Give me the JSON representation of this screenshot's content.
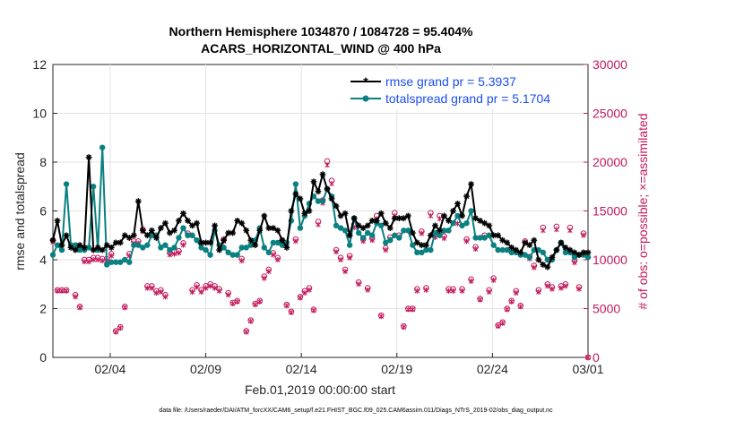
{
  "chart_data": {
    "type": "line",
    "title_line1": "Northern Hemisphere 1034870 / 1084728 = 95.404%",
    "title_line2": "ACARS_HORIZONTAL_WIND @ 400 hPa",
    "xlabel": "Feb.01,2019 00:00:00 start",
    "ylabel_left": "rmse and totalspread",
    "ylabel_right": "# of obs: o=possible; ×=assimilated",
    "xlim": [
      0,
      28
    ],
    "ylim_left": [
      0,
      12
    ],
    "ylim_right": [
      0,
      30000
    ],
    "x_ticks": [
      {
        "x": 3,
        "label": "02/04"
      },
      {
        "x": 8,
        "label": "02/09"
      },
      {
        "x": 13,
        "label": "02/14"
      },
      {
        "x": 18,
        "label": "02/19"
      },
      {
        "x": 23,
        "label": "02/24"
      },
      {
        "x": 28,
        "label": "03/01"
      }
    ],
    "y_ticks_left": [
      "0",
      "2",
      "4",
      "6",
      "8",
      "10",
      "12"
    ],
    "y_ticks_right": [
      "0",
      "5000",
      "10000",
      "15000",
      "20000",
      "25000",
      "30000"
    ],
    "series": [
      {
        "name": "rmse",
        "legend": "rmse grand pr = 5.3937",
        "color": "#000000",
        "values": [
          4.8,
          5.6,
          4.6,
          5.0,
          4.5,
          4.4,
          4.6,
          4.5,
          8.2,
          4.4,
          4.5,
          4.4,
          4.6,
          4.5,
          4.7,
          4.7,
          5.0,
          4.9,
          5.0,
          6.4,
          5.2,
          5.0,
          5.2,
          4.9,
          5.3,
          5.5,
          5.1,
          5.2,
          5.6,
          5.9,
          5.6,
          5.4,
          5.5,
          4.7,
          4.7,
          4.7,
          5.4,
          4.4,
          4.8,
          5.1,
          5.1,
          5.6,
          5.5,
          5.2,
          4.8,
          4.6,
          5.2,
          5.8,
          5.3,
          5.3,
          5.2,
          4.8,
          4.5,
          6.0,
          6.7,
          6.5,
          5.9,
          6.0,
          7.2,
          6.8,
          7.5,
          6.9,
          6.5,
          6.2,
          5.8,
          5.9,
          5.0,
          5.7,
          5.4,
          5.3,
          5.4,
          5.6,
          5.6,
          5.9,
          5.5,
          5.3,
          5.7,
          5.7,
          5.7,
          5.8,
          5.1,
          4.7,
          4.6,
          4.6,
          5.0,
          5.4,
          5.2,
          5.8,
          5.6,
          6.0,
          6.3,
          5.8,
          6.6,
          7.1,
          5.7,
          5.6,
          5.5,
          5.4,
          5.0,
          5.0,
          4.8,
          4.7,
          4.5,
          4.4,
          4.3,
          4.7,
          4.6,
          4.8,
          4.0,
          3.8,
          3.7,
          4.1,
          4.4,
          4.7,
          4.5,
          4.4,
          4.3,
          4.2,
          4.3,
          4.3
        ]
      },
      {
        "name": "totalspread",
        "legend": "totalspread grand pr = 5.1704",
        "color": "#0b8080",
        "values": [
          4.2,
          4.6,
          4.4,
          7.1,
          4.6,
          4.6,
          4.4,
          4.4,
          4.5,
          7.0,
          4.4,
          8.6,
          3.8,
          3.9,
          3.9,
          3.9,
          4.0,
          3.9,
          4.6,
          4.6,
          4.5,
          4.6,
          5.0,
          5.0,
          4.5,
          4.6,
          4.4,
          4.5,
          4.9,
          5.3,
          5.0,
          5.0,
          4.8,
          4.5,
          4.4,
          4.2,
          5.2,
          4.6,
          4.5,
          4.3,
          4.2,
          4.2,
          4.5,
          4.5,
          4.6,
          4.8,
          5.3,
          4.5,
          4.3,
          4.7,
          4.7,
          4.6,
          4.7,
          5.6,
          7.1,
          5.3,
          5.8,
          6.3,
          6.6,
          6.4,
          6.4,
          6.9,
          6.6,
          5.4,
          5.3,
          5.2,
          4.6,
          5.7,
          5.1,
          4.9,
          5.1,
          5.0,
          5.5,
          5.4,
          4.7,
          4.8,
          5.0,
          4.9,
          5.2,
          5.2,
          4.6,
          4.3,
          4.3,
          4.4,
          4.4,
          5.1,
          5.0,
          5.2,
          5.2,
          5.5,
          5.8,
          5.4,
          5.5,
          6.0,
          4.9,
          4.9,
          4.9,
          5.0,
          4.6,
          4.4,
          4.4,
          4.4,
          4.3,
          4.3,
          4.2,
          4.2,
          4.1,
          4.4,
          4.4,
          4.3,
          4.0,
          4.0,
          4.4,
          4.7,
          4.3,
          4.3,
          4.1,
          4.2,
          4.2,
          4.1
        ]
      },
      {
        "name": "obs_possible",
        "legend": "o=possible",
        "color": "#c2185b",
        "values": [
          12000,
          6900,
          6900,
          6900,
          null,
          6400,
          5200,
          10000,
          10000,
          10200,
          10200,
          10100,
          10100,
          10600,
          2700,
          3100,
          5200,
          10600,
          11900,
          11900,
          13100,
          7300,
          7300,
          6800,
          6900,
          6400,
          10700,
          10800,
          10900,
          11700,
          12700,
          6900,
          7400,
          6900,
          7300,
          7500,
          7300,
          7000,
          12100,
          6600,
          5600,
          5800,
          10100,
          2700,
          3800,
          5500,
          5800,
          8300,
          9000,
          10700,
          10200,
          12000,
          5400,
          4700,
          12100,
          6200,
          6800,
          7100,
          4900,
          13900,
          16100,
          20100,
          18100,
          11000,
          10200,
          9000,
          10400,
          13600,
          7700,
          12100,
          7100,
          12200,
          14500,
          4300,
          11200,
          12300,
          14800,
          12500,
          3200,
          5000,
          5000,
          7000,
          12900,
          7100,
          14800,
          12500,
          14500,
          12400,
          7000,
          7000,
          14000,
          7000,
          12100,
          8000,
          11300,
          6000,
          12500,
          6900,
          8100,
          3300,
          3600,
          5000,
          5800,
          6800,
          5300,
          11900,
          10300,
          9400,
          6900,
          13300,
          7500,
          7200,
          13400,
          7300,
          7500,
          13300,
          9900,
          7200,
          12700,
          0
        ]
      },
      {
        "name": "obs_assimilated",
        "legend": "×=assimilated",
        "color": "#c2185b",
        "values": [
          11800,
          6800,
          6800,
          6800,
          null,
          6200,
          5100,
          9800,
          9800,
          10000,
          10000,
          9900,
          9900,
          10400,
          2600,
          3000,
          5100,
          10400,
          11700,
          11700,
          12900,
          7100,
          7100,
          6600,
          6700,
          6200,
          10500,
          10600,
          10700,
          11500,
          12500,
          6700,
          7200,
          6700,
          7100,
          7300,
          7100,
          6800,
          11900,
          6400,
          5500,
          5700,
          9900,
          2600,
          3700,
          5400,
          5700,
          8100,
          8800,
          10500,
          10000,
          11800,
          5300,
          4600,
          11900,
          6100,
          6600,
          6900,
          4800,
          13600,
          15800,
          19700,
          17800,
          10800,
          10000,
          8800,
          10200,
          13300,
          7500,
          11900,
          6900,
          12000,
          14200,
          4200,
          11000,
          12100,
          14500,
          12300,
          3100,
          4900,
          4900,
          6800,
          12700,
          6900,
          14500,
          12300,
          14200,
          12200,
          6800,
          6800,
          13700,
          6800,
          11900,
          7800,
          11100,
          5900,
          12300,
          6700,
          7900,
          3200,
          3500,
          4900,
          5700,
          6600,
          5200,
          11700,
          10100,
          9200,
          6700,
          13000,
          7300,
          7000,
          13100,
          7100,
          7300,
          13000,
          9700,
          7000,
          12500,
          0
        ]
      }
    ]
  },
  "footer": "data file: /Users/raeder/DAI/ATM_forcXX/CAM6_setup/f.e21.FHIST_BGC.f09_025.CAM6assim.011/Diags_NTrS_2019-02/obs_diag_output.nc"
}
